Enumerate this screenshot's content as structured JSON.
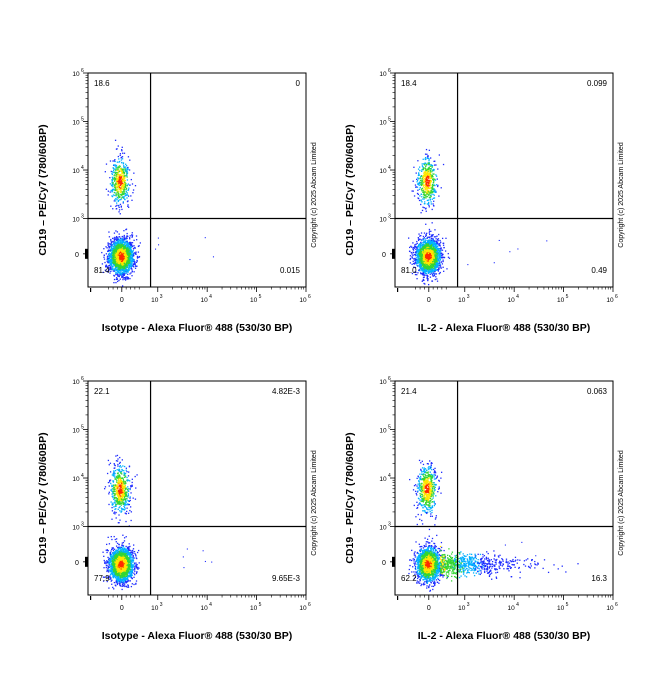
{
  "copyright": "Copyright (c) 2025 Abcam Limited",
  "axis_ticks": {
    "x": [
      "0",
      "10",
      "3",
      "10",
      "4",
      "10",
      "5",
      "10",
      "6"
    ],
    "y": [
      "10",
      "6",
      "10",
      "5",
      "10",
      "4",
      "10",
      "3",
      "0"
    ]
  },
  "colors": {
    "density_low": "#1e2cff",
    "density_mid1": "#00b0ff",
    "density_mid2": "#33d633",
    "density_mid3": "#ffe600",
    "density_high": "#ff2a00",
    "gate_line": "#000000"
  },
  "chart_data": [
    {
      "type": "scatter",
      "xlabel": "Isotype - Alexa Fluor® 488 (530/30 BP)",
      "ylabel": "CD19 – PE/Cy7 (780/60BP)",
      "xscale": "biexponential",
      "yscale": "biexponential",
      "quadrants": {
        "top_left": "18.6",
        "top_right": "0",
        "bottom_left": "81.4",
        "bottom_right": "0.015"
      },
      "populations": [
        {
          "name": "",
          "x_center": 0,
          "y_center": 6000,
          "fraction": 0.186
        },
        {
          "name": "",
          "x_center": 0,
          "y_center": 0,
          "fraction": 0.814
        }
      ],
      "tail_extent_x": 0
    },
    {
      "type": "scatter",
      "xlabel": "IL-2 - Alexa Fluor® 488 (530/30 BP)",
      "ylabel": "CD19 – PE/Cy7 (780/60BP)",
      "xscale": "biexponential",
      "yscale": "biexponential",
      "quadrants": {
        "top_left": "18.4",
        "top_right": "0.099",
        "bottom_left": "81.0",
        "bottom_right": "0.49"
      },
      "populations": [
        {
          "name": "",
          "x_center": 0,
          "y_center": 6000,
          "fraction": 0.184
        },
        {
          "name": "",
          "x_center": 0,
          "y_center": 0,
          "fraction": 0.81
        }
      ],
      "tail_extent_x": 0
    },
    {
      "type": "scatter",
      "xlabel": "Isotype - Alexa Fluor® 488 (530/30 BP)",
      "ylabel": "CD19 – PE/Cy7 (780/60BP)",
      "xscale": "biexponential",
      "yscale": "biexponential",
      "quadrants": {
        "top_left": "22.1",
        "top_right": "4.82E-3",
        "bottom_left": "77.9",
        "bottom_right": "9.65E-3"
      },
      "populations": [
        {
          "name": "",
          "x_center": 0,
          "y_center": 6000,
          "fraction": 0.221
        },
        {
          "name": "",
          "x_center": 0,
          "y_center": 0,
          "fraction": 0.779
        }
      ],
      "tail_extent_x": 0
    },
    {
      "type": "scatter",
      "xlabel": "IL-2 - Alexa Fluor® 488 (530/30 BP)",
      "ylabel": "CD19 – PE/Cy7 (780/60BP)",
      "xscale": "biexponential",
      "yscale": "biexponential",
      "quadrants": {
        "top_left": "21.4",
        "top_right": "0.063",
        "bottom_left": "62.2",
        "bottom_right": "16.3"
      },
      "populations": [
        {
          "name": "",
          "x_center": 0,
          "y_center": 6000,
          "fraction": 0.214
        },
        {
          "name": "",
          "x_center": 0,
          "y_center": 0,
          "fraction": 0.622
        }
      ],
      "tail_extent_x": 20000
    }
  ]
}
